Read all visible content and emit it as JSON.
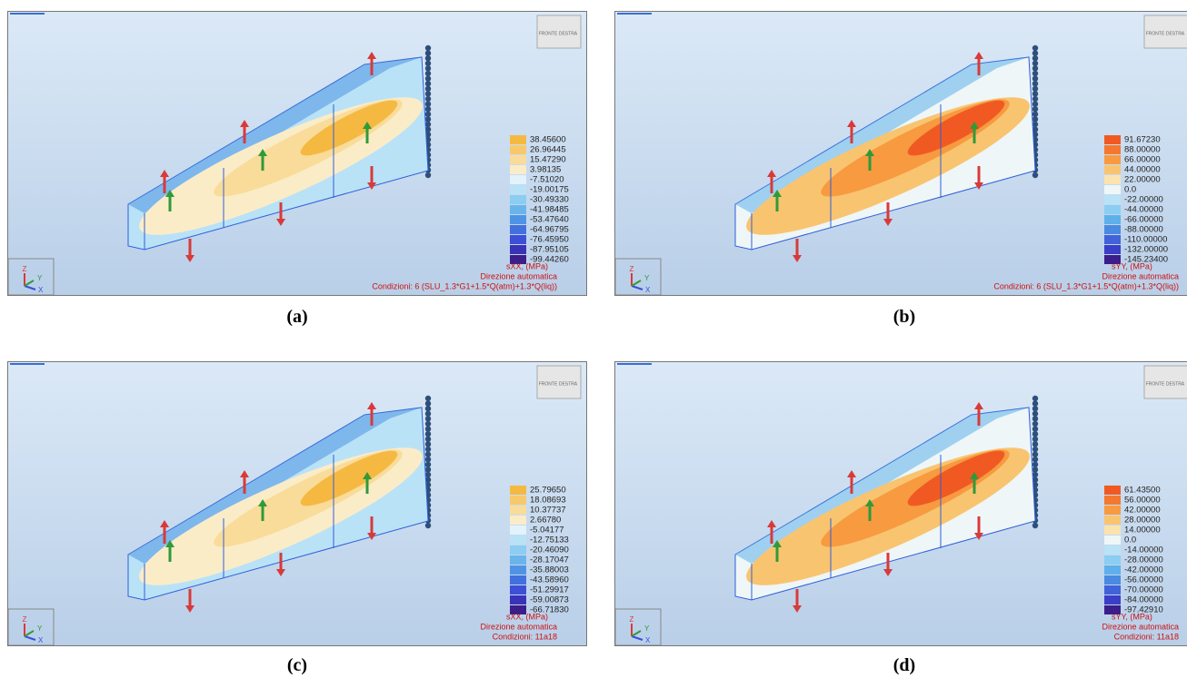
{
  "panels": [
    {
      "caption": "(a)",
      "quantity": "sXX, (MPa)",
      "direction": "Direzione automatica",
      "conditions": "Condizioni: 6 (SLU_1.3*G1+1.5*Q(atm)+1.3*Q(liq))",
      "legend": [
        "38.45600",
        "26.96445",
        "15.47290",
        "3.98135",
        "-7.51020",
        "-19.00175",
        "-30.49330",
        "-41.98485",
        "-53.47640",
        "-64.96795",
        "-76.45950",
        "-87.95105",
        "-99.44260"
      ],
      "legend_colors": [
        "#f5b942",
        "#f7c96a",
        "#f9dc9a",
        "#fbecc8",
        "#e2f3fb",
        "#b9e2f7",
        "#8ccdf2",
        "#6ab4ec",
        "#4f94e4",
        "#4270dd",
        "#3d4fd6",
        "#3a33b8",
        "#3b1e8a"
      ]
    },
    {
      "caption": "(b)",
      "quantity": "sYY, (MPa)",
      "direction": "Direzione automatica",
      "conditions": "Condizioni: 6 (SLU_1.3*G1+1.5*Q(atm)+1.3*Q(liq))",
      "legend": [
        "91.67230",
        "88.00000",
        "66.00000",
        "44.00000",
        "22.00000",
        "0.0",
        "-22.00000",
        "-44.00000",
        "-66.00000",
        "-88.00000",
        "-110.00000",
        "-132.00000",
        "-145.23400"
      ],
      "legend_colors": [
        "#f05a22",
        "#f4782f",
        "#f79a40",
        "#f9c470",
        "#fbe3b0",
        "#eef6f8",
        "#b9e2f7",
        "#8ccdf2",
        "#5fb0ea",
        "#4a8ae2",
        "#4162d9",
        "#3b3ec6",
        "#3b1e8a"
      ]
    },
    {
      "caption": "(c)",
      "quantity": "sXX, (MPa)",
      "direction": "Direzione automatica",
      "conditions": "Condizioni: 11a18",
      "legend": [
        "25.79650",
        "18.08693",
        "10.37737",
        "2.66780",
        "-5.04177",
        "-12.75133",
        "-20.46090",
        "-28.17047",
        "-35.88003",
        "-43.58960",
        "-51.29917",
        "-59.00873",
        "-66.71830"
      ],
      "legend_colors": [
        "#f5b942",
        "#f7c96a",
        "#f9dc9a",
        "#fbecc8",
        "#e2f3fb",
        "#b9e2f7",
        "#8ccdf2",
        "#6ab4ec",
        "#4f94e4",
        "#4270dd",
        "#3d4fd6",
        "#3a33b8",
        "#3b1e8a"
      ]
    },
    {
      "caption": "(d)",
      "quantity": "sYY, (MPa)",
      "direction": "Direzione automatica",
      "conditions": "Condizioni: 11a18",
      "legend": [
        "61.43500",
        "56.00000",
        "42.00000",
        "28.00000",
        "14.00000",
        "0.0",
        "-14.00000",
        "-28.00000",
        "-42.00000",
        "-56.00000",
        "-70.00000",
        "-84.00000",
        "-97.42910"
      ],
      "legend_colors": [
        "#f05a22",
        "#f4782f",
        "#f79a40",
        "#f9c470",
        "#fbe3b0",
        "#eef6f8",
        "#b9e2f7",
        "#8ccdf2",
        "#5fb0ea",
        "#4a8ae2",
        "#4162d9",
        "#3b3ec6",
        "#3b1e8a"
      ]
    }
  ],
  "axes": {
    "z": "Z",
    "y": "Y",
    "x": "X"
  },
  "cube": [
    "FRONTE",
    "DESTRA"
  ]
}
